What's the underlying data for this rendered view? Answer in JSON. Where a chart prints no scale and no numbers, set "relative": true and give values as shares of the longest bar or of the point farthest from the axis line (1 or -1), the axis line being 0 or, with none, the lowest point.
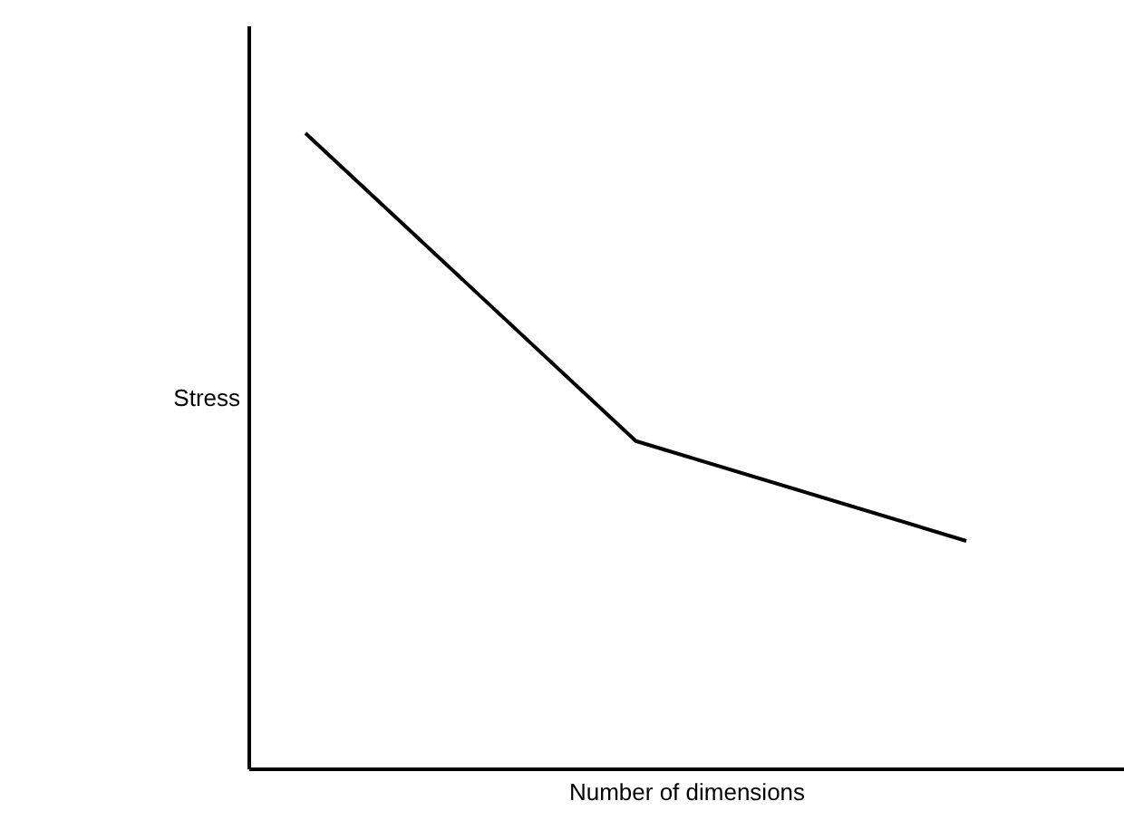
{
  "chart_data": {
    "type": "line",
    "xlabel": "Number of dimensions",
    "ylabel": "Stress",
    "categories": [
      null,
      null,
      null
    ],
    "relative": true,
    "series": [
      {
        "color": "#000000",
        "values": [
          1,
          0.516,
          0.359
        ]
      }
    ],
    "marker": "none",
    "line_style": "solid"
  }
}
